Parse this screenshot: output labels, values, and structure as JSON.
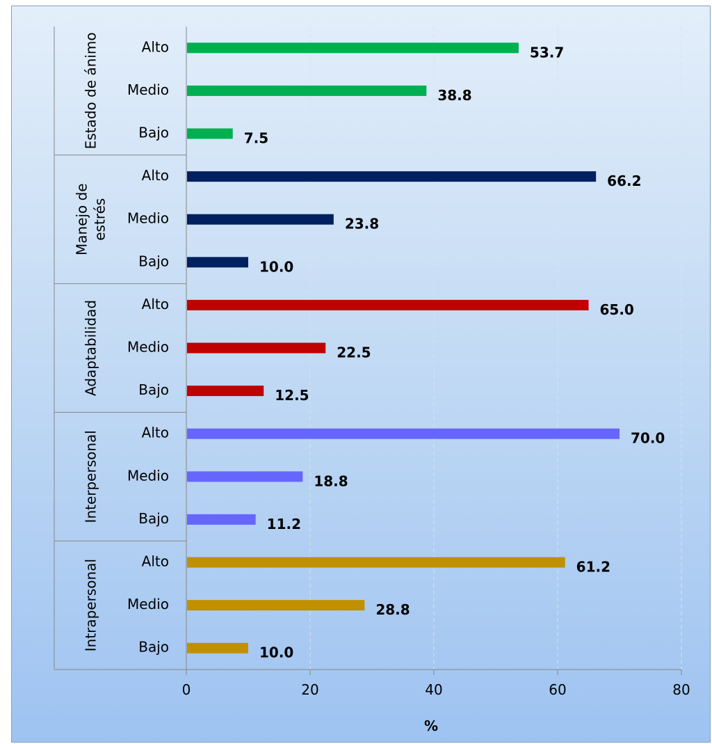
{
  "chart_data": {
    "type": "bar",
    "orientation": "horizontal",
    "xlabel": "%",
    "xlim": [
      0,
      80
    ],
    "xticks": [
      0,
      20,
      40,
      60,
      80
    ],
    "grid": "vertical dashed",
    "groups": [
      {
        "name": "Estado de ánimo",
        "color": "#00b050",
        "bars": [
          {
            "category": "Alto",
            "value": 53.7,
            "label": "53.7"
          },
          {
            "category": "Medio",
            "value": 38.8,
            "label": "38.8"
          },
          {
            "category": "Bajo",
            "value": 7.5,
            "label": "7.5"
          }
        ]
      },
      {
        "name": "Manejo de estrés",
        "name_lines": [
          "Manejo de",
          "estrés"
        ],
        "color": "#002060",
        "bars": [
          {
            "category": "Alto",
            "value": 66.2,
            "label": "66.2"
          },
          {
            "category": "Medio",
            "value": 23.8,
            "label": "23.8"
          },
          {
            "category": "Bajo",
            "value": 10.0,
            "label": "10.0"
          }
        ]
      },
      {
        "name": "Adaptabilidad",
        "color": "#c00000",
        "bars": [
          {
            "category": "Alto",
            "value": 65.0,
            "label": "65.0"
          },
          {
            "category": "Medio",
            "value": 22.5,
            "label": "22.5"
          },
          {
            "category": "Bajo",
            "value": 12.5,
            "label": "12.5"
          }
        ]
      },
      {
        "name": "Interpersonal",
        "color": "#6666ff",
        "bars": [
          {
            "category": "Alto",
            "value": 70.0,
            "label": "70.0"
          },
          {
            "category": "Medio",
            "value": 18.8,
            "label": "18.8"
          },
          {
            "category": "Bajo",
            "value": 11.2,
            "label": "11.2"
          }
        ]
      },
      {
        "name": "Intrapersonal",
        "color": "#c09000",
        "bars": [
          {
            "category": "Alto",
            "value": 61.2,
            "label": "61.2"
          },
          {
            "category": "Medio",
            "value": 28.8,
            "label": "28.8"
          },
          {
            "category": "Bajo",
            "value": 10.0,
            "label": "10.0"
          }
        ]
      }
    ]
  }
}
